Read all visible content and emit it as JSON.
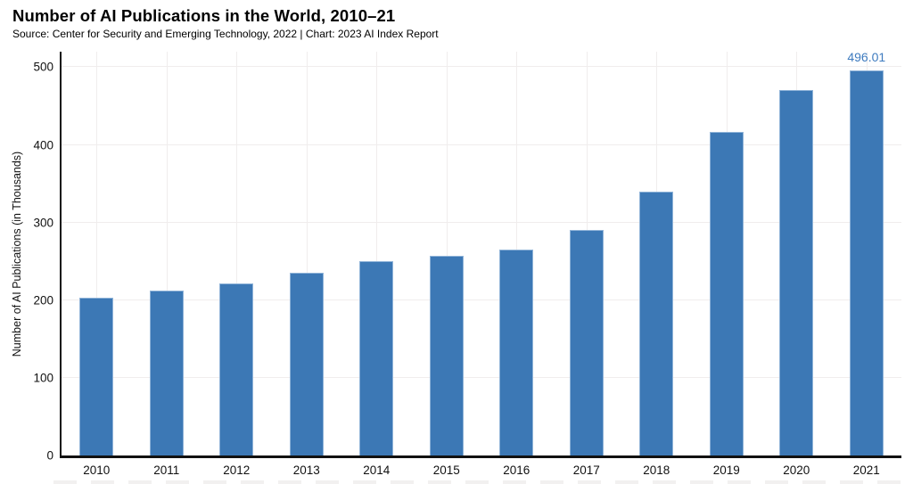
{
  "header": {
    "title": "Number of AI Publications in the World, 2010–21",
    "subtitle": "Source: Center for Security and Emerging Technology, 2022 | Chart: 2023 AI Index Report"
  },
  "colors": {
    "bar_fill": "#3c78b5",
    "bar_edge": "#8fb3d8",
    "value_label": "#3e7bbf",
    "gridline": "#f0eded",
    "axis": "#111111",
    "text": "#000000"
  },
  "chart_data": {
    "type": "bar",
    "title": "Number of AI Publications in the World, 2010–21",
    "subtitle": "Source: Center for Security and Emerging Technology, 2022 | Chart: 2023 AI Index Report",
    "xlabel": "",
    "ylabel": "Number of AI Publications (in Thousands)",
    "categories": [
      "2010",
      "2011",
      "2012",
      "2013",
      "2014",
      "2015",
      "2016",
      "2017",
      "2018",
      "2019",
      "2020",
      "2021"
    ],
    "values": [
      203,
      212,
      222,
      235,
      250,
      257,
      265,
      290,
      340,
      417,
      471,
      496.01
    ],
    "ylim": [
      0,
      520
    ],
    "yticks": [
      0,
      100,
      200,
      300,
      400,
      500
    ],
    "grid": true,
    "vertical_grid": true,
    "legend_position": "none",
    "value_label": {
      "category": "2021",
      "text": "496.01"
    }
  }
}
